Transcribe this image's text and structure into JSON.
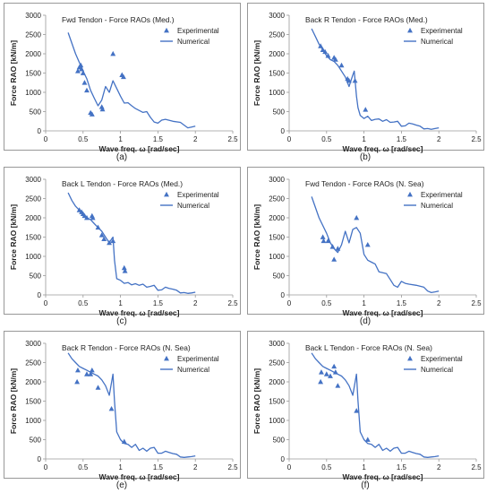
{
  "colors": {
    "series": "#4472c4",
    "text": "#222222",
    "frame": "#7f7f7f"
  },
  "chart_data": [
    {
      "type": "line",
      "caption": "(a)",
      "title": "Fwd Tendon -  Force RAOs (Med.)",
      "xlabel": "Wave freq. ω [rad/sec]",
      "ylabel": "Force RAO [kN/m]",
      "xlim": [
        0,
        2.5
      ],
      "ylim": [
        0,
        3000
      ],
      "xticks": [
        "0",
        "0.5",
        "1",
        "1.5",
        "2",
        "2.5"
      ],
      "yticks": [
        "0",
        "500",
        "1000",
        "1500",
        "2000",
        "2500",
        "3000"
      ],
      "legend": "top-right",
      "series": [
        {
          "name": "Experimental",
          "marker": "triangle",
          "x": [
            0.43,
            0.45,
            0.47,
            0.48,
            0.5,
            0.52,
            0.55,
            0.6,
            0.62,
            0.75,
            0.76,
            0.9,
            1.02,
            1.04
          ],
          "y": [
            1550,
            1650,
            1700,
            1600,
            1500,
            1250,
            1050,
            470,
            430,
            620,
            560,
            2000,
            1450,
            1400
          ]
        },
        {
          "name": "Numerical",
          "marker": "line",
          "x": [
            0.3,
            0.4,
            0.5,
            0.55,
            0.6,
            0.65,
            0.7,
            0.75,
            0.8,
            0.85,
            0.9,
            0.95,
            1.0,
            1.05,
            1.1,
            1.15,
            1.2,
            1.3,
            1.35,
            1.4,
            1.45,
            1.5,
            1.55,
            1.6,
            1.7,
            1.8,
            1.85,
            1.9,
            1.95,
            2.0
          ],
          "y": [
            2550,
            2000,
            1550,
            1350,
            1050,
            850,
            650,
            800,
            1150,
            1000,
            1300,
            1100,
            900,
            720,
            730,
            650,
            580,
            480,
            500,
            350,
            230,
            200,
            280,
            300,
            250,
            220,
            150,
            80,
            100,
            120
          ]
        }
      ]
    },
    {
      "type": "line",
      "caption": "(b)",
      "title": "Back R Tendon -  Force RAOs (Med.)",
      "xlabel": "Wave freq. ω [rad/sec]",
      "ylabel": "Force RAO [kN/m]",
      "xlim": [
        0,
        2.5
      ],
      "ylim": [
        0,
        3000
      ],
      "xticks": [
        "0",
        "0.5",
        "1",
        "1.5",
        "2",
        "2.5"
      ],
      "yticks": [
        "0",
        "500",
        "1000",
        "1500",
        "2000",
        "2500",
        "3000"
      ],
      "legend": "top-right",
      "series": [
        {
          "name": "Experimental",
          "marker": "triangle",
          "x": [
            0.42,
            0.45,
            0.48,
            0.52,
            0.6,
            0.62,
            0.7,
            0.78,
            0.8,
            0.88,
            1.02
          ],
          "y": [
            2200,
            2100,
            2050,
            1950,
            1900,
            1850,
            1700,
            1350,
            1300,
            1300,
            550
          ]
        },
        {
          "name": "Numerical",
          "marker": "line",
          "x": [
            0.3,
            0.35,
            0.4,
            0.45,
            0.5,
            0.55,
            0.6,
            0.65,
            0.7,
            0.75,
            0.8,
            0.85,
            0.87,
            0.9,
            0.92,
            0.95,
            1.0,
            1.05,
            1.1,
            1.15,
            1.2,
            1.25,
            1.3,
            1.35,
            1.4,
            1.45,
            1.5,
            1.55,
            1.6,
            1.65,
            1.7,
            1.75,
            1.8,
            1.85,
            1.9,
            1.95,
            2.0
          ],
          "y": [
            2650,
            2450,
            2250,
            2100,
            1950,
            1850,
            1800,
            1700,
            1550,
            1400,
            1150,
            1450,
            1550,
            900,
            600,
            400,
            320,
            380,
            270,
            300,
            310,
            250,
            290,
            220,
            230,
            250,
            120,
            130,
            200,
            180,
            150,
            120,
            50,
            60,
            40,
            60,
            80
          ]
        }
      ]
    },
    {
      "type": "line",
      "caption": "(c)",
      "title": "Back L Tendon -  Force RAOs (Med.)",
      "xlabel": "Wave freq. ω [rad/sec]",
      "ylabel": "Force RAO [kN/m]",
      "xlim": [
        0,
        2.5
      ],
      "ylim": [
        0,
        3000
      ],
      "xticks": [
        "0",
        "0.5",
        "1",
        "1.5",
        "2",
        "2.5"
      ],
      "yticks": [
        "0",
        "500",
        "1000",
        "1500",
        "2000",
        "2500",
        "3000"
      ],
      "legend": "top-right",
      "series": [
        {
          "name": "Experimental",
          "marker": "triangle",
          "x": [
            0.45,
            0.48,
            0.5,
            0.52,
            0.55,
            0.62,
            0.63,
            0.7,
            0.75,
            0.78,
            0.85,
            0.9,
            1.05,
            1.06
          ],
          "y": [
            2200,
            2150,
            2100,
            2050,
            2000,
            2050,
            2000,
            1750,
            1550,
            1450,
            1350,
            1400,
            700,
            620
          ]
        },
        {
          "name": "Numerical",
          "marker": "line",
          "x": [
            0.3,
            0.35,
            0.4,
            0.45,
            0.5,
            0.55,
            0.6,
            0.65,
            0.7,
            0.75,
            0.8,
            0.85,
            0.88,
            0.9,
            0.92,
            0.95,
            1.0,
            1.05,
            1.1,
            1.15,
            1.2,
            1.25,
            1.3,
            1.35,
            1.4,
            1.45,
            1.5,
            1.55,
            1.6,
            1.65,
            1.7,
            1.75,
            1.8,
            1.85,
            1.9,
            1.95,
            2.0
          ],
          "y": [
            2650,
            2450,
            2300,
            2200,
            2100,
            2000,
            1950,
            1850,
            1750,
            1650,
            1500,
            1350,
            1450,
            1500,
            900,
            420,
            380,
            300,
            320,
            260,
            290,
            250,
            280,
            200,
            220,
            250,
            120,
            130,
            200,
            170,
            150,
            120,
            50,
            60,
            40,
            50,
            70
          ]
        }
      ]
    },
    {
      "type": "line",
      "caption": "(d)",
      "title": "Fwd Tendon - Force RAOs  (N. Sea)",
      "xlabel": "Wave freq. ω [rad/sec]",
      "ylabel": "Force RAO [kN/m]",
      "xlim": [
        0,
        2.5
      ],
      "ylim": [
        0,
        3000
      ],
      "xticks": [
        "0",
        "0.5",
        "1",
        "1.5",
        "2",
        "2.5"
      ],
      "yticks": [
        "0",
        "500",
        "1000",
        "1500",
        "2000",
        "2500",
        "3000"
      ],
      "legend": "top-right",
      "series": [
        {
          "name": "Experimental",
          "marker": "triangle",
          "x": [
            0.45,
            0.46,
            0.52,
            0.58,
            0.6,
            0.65,
            0.9,
            1.05
          ],
          "y": [
            1500,
            1400,
            1400,
            1250,
            920,
            1200,
            2000,
            1300
          ]
        },
        {
          "name": "Numerical",
          "marker": "line",
          "x": [
            0.3,
            0.4,
            0.5,
            0.55,
            0.6,
            0.65,
            0.7,
            0.75,
            0.8,
            0.85,
            0.9,
            0.95,
            1.0,
            1.05,
            1.1,
            1.15,
            1.2,
            1.3,
            1.35,
            1.4,
            1.45,
            1.5,
            1.55,
            1.6,
            1.7,
            1.8,
            1.85,
            1.9,
            1.95,
            2.0
          ],
          "y": [
            2550,
            2000,
            1600,
            1350,
            1200,
            1100,
            1300,
            1650,
            1350,
            1700,
            1750,
            1600,
            1050,
            900,
            850,
            800,
            600,
            550,
            400,
            250,
            200,
            350,
            300,
            280,
            250,
            200,
            100,
            60,
            80,
            100
          ]
        }
      ]
    },
    {
      "type": "line",
      "caption": "(e)",
      "title": "Back R Tendon - Force RAOs  (N. Sea)",
      "xlabel": "Wave freq. ω [rad/sec]",
      "ylabel": "Force RAO [kN/m]",
      "xlim": [
        0,
        2.5
      ],
      "ylim": [
        0,
        3000
      ],
      "xticks": [
        "0",
        "0.5",
        "1",
        "1.5",
        "2",
        "2.5"
      ],
      "yticks": [
        "0",
        "500",
        "1000",
        "1500",
        "2000",
        "2500",
        "3000"
      ],
      "legend": "top-right",
      "series": [
        {
          "name": "Experimental",
          "marker": "triangle",
          "x": [
            0.42,
            0.43,
            0.55,
            0.6,
            0.62,
            0.7,
            0.88,
            1.05
          ],
          "y": [
            2000,
            2300,
            2200,
            2200,
            2300,
            1850,
            1300,
            450
          ]
        },
        {
          "name": "Numerical",
          "marker": "line",
          "x": [
            0.3,
            0.35,
            0.4,
            0.45,
            0.5,
            0.55,
            0.6,
            0.65,
            0.7,
            0.75,
            0.8,
            0.85,
            0.9,
            0.92,
            0.95,
            1.0,
            1.05,
            1.1,
            1.15,
            1.2,
            1.25,
            1.3,
            1.35,
            1.4,
            1.45,
            1.5,
            1.55,
            1.6,
            1.65,
            1.7,
            1.75,
            1.8,
            1.85,
            1.9,
            1.95,
            2.0
          ],
          "y": [
            2750,
            2600,
            2500,
            2400,
            2350,
            2300,
            2250,
            2200,
            2150,
            2050,
            1900,
            1650,
            2200,
            1500,
            700,
            500,
            400,
            380,
            300,
            380,
            220,
            280,
            200,
            280,
            300,
            150,
            150,
            200,
            170,
            140,
            120,
            50,
            40,
            50,
            60,
            80
          ]
        }
      ]
    },
    {
      "type": "line",
      "caption": "(f)",
      "title": "Back L Tendon - Force RAOs  (N. Sea)",
      "xlabel": "Wave freq. ω [rad/sec]",
      "ylabel": "Force RAO [kN/m]",
      "xlim": [
        0,
        2.5
      ],
      "ylim": [
        0,
        3000
      ],
      "xticks": [
        "0",
        "0.5",
        "1",
        "1.5",
        "2",
        "2.5"
      ],
      "yticks": [
        "0",
        "500",
        "1000",
        "1500",
        "2000",
        "2500",
        "3000"
      ],
      "legend": "top-right",
      "series": [
        {
          "name": "Experimental",
          "marker": "triangle",
          "x": [
            0.42,
            0.43,
            0.5,
            0.55,
            0.6,
            0.62,
            0.65,
            0.9,
            1.05
          ],
          "y": [
            2000,
            2250,
            2200,
            2150,
            2400,
            2250,
            1900,
            1250,
            500
          ]
        },
        {
          "name": "Numerical",
          "marker": "line",
          "x": [
            0.3,
            0.35,
            0.4,
            0.45,
            0.5,
            0.55,
            0.6,
            0.65,
            0.7,
            0.75,
            0.8,
            0.85,
            0.9,
            0.92,
            0.95,
            1.0,
            1.05,
            1.1,
            1.15,
            1.2,
            1.25,
            1.3,
            1.35,
            1.4,
            1.45,
            1.5,
            1.55,
            1.6,
            1.65,
            1.7,
            1.75,
            1.8,
            1.85,
            1.9,
            1.95,
            2.0
          ],
          "y": [
            2750,
            2600,
            2500,
            2400,
            2350,
            2300,
            2250,
            2200,
            2150,
            2050,
            1900,
            1650,
            2200,
            1500,
            700,
            500,
            400,
            380,
            300,
            380,
            220,
            280,
            200,
            280,
            300,
            150,
            150,
            200,
            170,
            140,
            120,
            50,
            40,
            50,
            60,
            80
          ]
        }
      ]
    }
  ]
}
